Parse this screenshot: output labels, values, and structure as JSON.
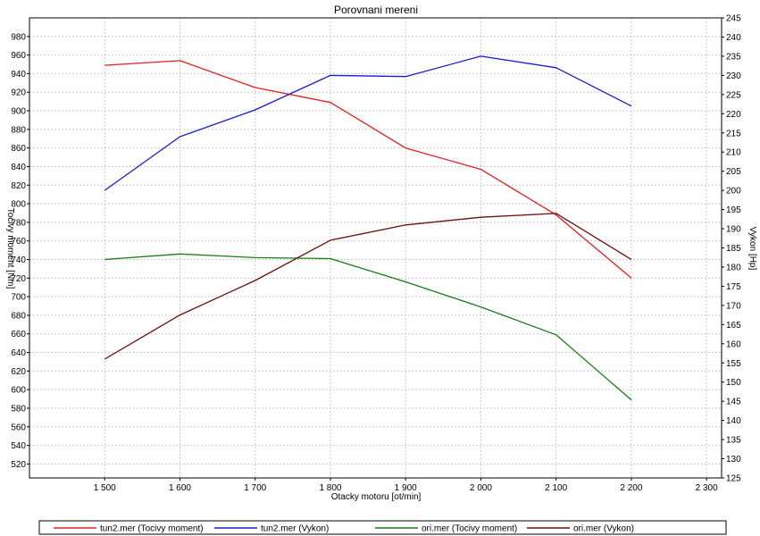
{
  "chart_data": {
    "type": "line",
    "title": "Porovnani mereni",
    "xlabel": "Otacky motoru [ot/min]",
    "ylabel_left": "Tocivy moment [Nm]",
    "ylabel_right": "Vykon [Hp]",
    "x_ticks": [
      "1 500",
      "1 600",
      "1 700",
      "1 800",
      "1 900",
      "2 000",
      "2 100",
      "2 200",
      "2 300"
    ],
    "x_tick_values": [
      1500,
      1600,
      1700,
      1800,
      1900,
      2000,
      2100,
      2200,
      2300
    ],
    "xlim": [
      1400,
      2320
    ],
    "ylim_left": [
      505,
      1000
    ],
    "ylim_right": [
      125,
      245
    ],
    "yticks_left": [
      "520",
      "540",
      "560",
      "580",
      "600",
      "620",
      "640",
      "660",
      "680",
      "700",
      "720",
      "740",
      "760",
      "780",
      "800",
      "820",
      "840",
      "860",
      "880",
      "900",
      "920",
      "940",
      "960",
      "980"
    ],
    "ytick_left_values": [
      520,
      540,
      560,
      580,
      600,
      620,
      640,
      660,
      680,
      700,
      720,
      740,
      760,
      780,
      800,
      820,
      840,
      860,
      880,
      900,
      920,
      940,
      960,
      980
    ],
    "yticks_right": [
      "125",
      "130",
      "135",
      "140",
      "145",
      "150",
      "155",
      "160",
      "165",
      "170",
      "175",
      "180",
      "185",
      "190",
      "195",
      "200",
      "205",
      "210",
      "215",
      "220",
      "225",
      "230",
      "235",
      "240",
      "245"
    ],
    "ytick_right_values": [
      125,
      130,
      135,
      140,
      145,
      150,
      155,
      160,
      165,
      170,
      175,
      180,
      185,
      190,
      195,
      200,
      205,
      210,
      215,
      220,
      225,
      230,
      235,
      240,
      245
    ],
    "grid": true,
    "legend_position": "bottom",
    "x": [
      1500,
      1600,
      1700,
      1800,
      1900,
      2000,
      2100,
      2200
    ],
    "series": [
      {
        "name": "tun2.mer  (Tocivy moment)",
        "axis": "left",
        "color": "#e02020",
        "values": [
          949,
          954,
          925,
          909,
          860,
          837,
          788,
          720
        ]
      },
      {
        "name": "tun2.mer  (Vykon)",
        "axis": "right",
        "color": "#1a1ad0",
        "values": [
          200,
          214,
          221,
          230,
          229.7,
          235,
          232,
          222
        ]
      },
      {
        "name": "ori.mer  (Tocivy moment)",
        "axis": "left",
        "color": "#1a7a1a",
        "values": [
          740,
          746,
          742,
          741,
          716,
          689,
          659,
          589
        ]
      },
      {
        "name": "ori.mer  (Vykon)",
        "axis": "right",
        "color": "#6b0f0f",
        "values": [
          156,
          167.5,
          176.5,
          187,
          191,
          193,
          194,
          182
        ]
      }
    ]
  }
}
